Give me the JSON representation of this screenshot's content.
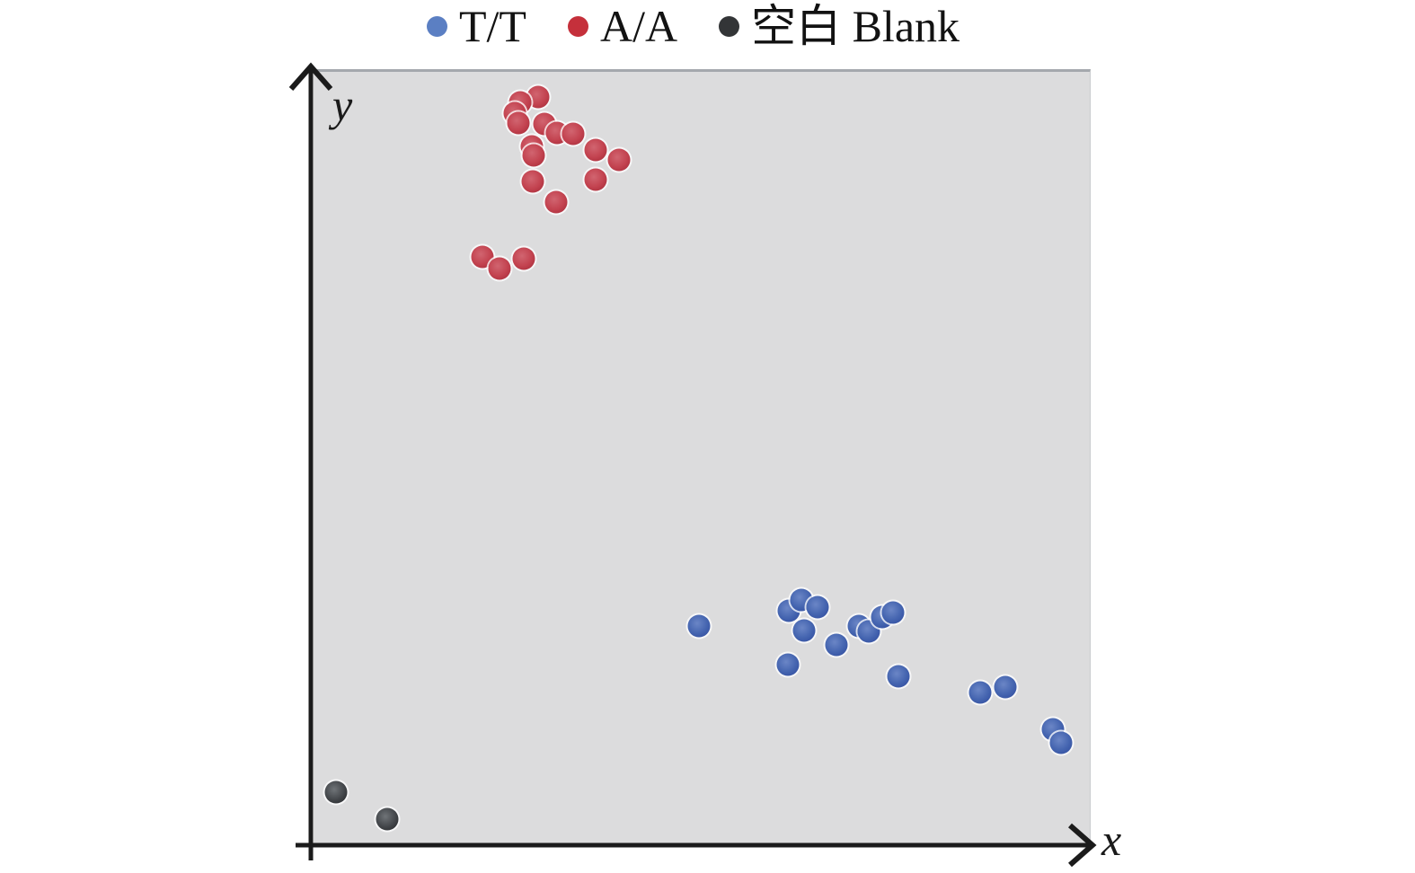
{
  "legend": {
    "items": [
      {
        "label": "T/T",
        "color": "#5b7fc3"
      },
      {
        "label": "A/A",
        "color": "#c5303b"
      },
      {
        "label": "空白 Blank",
        "color": "#333537"
      }
    ]
  },
  "axes": {
    "x_label": "x",
    "y_label": "y"
  },
  "colors": {
    "plot_background": "#dcdcdd",
    "plot_top_border": "#a4a8ad",
    "axis_line": "#1b1b1b",
    "series_blue": "#4565b0",
    "series_red": "#c34350",
    "series_black": "#45484c"
  },
  "chart_data": {
    "type": "scatter",
    "title": "",
    "xlabel": "x",
    "ylabel": "y",
    "xlim": [
      0,
      1
    ],
    "ylim": [
      0,
      1
    ],
    "axis_ticks": "none",
    "grid": false,
    "legend_position": "top-center",
    "description": "Genotyping scatter plot: A/A cluster high-y low-x, T/T cluster low-y high-x, blank samples near origin; coordinates normalized to plot area",
    "series": [
      {
        "name": "T/T",
        "color": "#4565b0",
        "points": [
          [
            0.497,
            0.283
          ],
          [
            0.612,
            0.302
          ],
          [
            0.629,
            0.316
          ],
          [
            0.649,
            0.307
          ],
          [
            0.632,
            0.277
          ],
          [
            0.674,
            0.258
          ],
          [
            0.702,
            0.283
          ],
          [
            0.715,
            0.276
          ],
          [
            0.733,
            0.294
          ],
          [
            0.746,
            0.3
          ],
          [
            0.611,
            0.233
          ],
          [
            0.753,
            0.218
          ],
          [
            0.859,
            0.196
          ],
          [
            0.891,
            0.204
          ],
          [
            0.952,
            0.149
          ],
          [
            0.963,
            0.131
          ]
        ]
      },
      {
        "name": "A/A",
        "color": "#c34350",
        "points": [
          [
            0.289,
            0.967
          ],
          [
            0.266,
            0.96
          ],
          [
            0.259,
            0.946
          ],
          [
            0.264,
            0.934
          ],
          [
            0.297,
            0.932
          ],
          [
            0.314,
            0.921
          ],
          [
            0.334,
            0.92
          ],
          [
            0.281,
            0.904
          ],
          [
            0.284,
            0.892
          ],
          [
            0.364,
            0.899
          ],
          [
            0.394,
            0.886
          ],
          [
            0.282,
            0.858
          ],
          [
            0.364,
            0.86
          ],
          [
            0.313,
            0.831
          ],
          [
            0.218,
            0.76
          ],
          [
            0.24,
            0.745
          ],
          [
            0.271,
            0.758
          ]
        ]
      },
      {
        "name": "空白 Blank",
        "color": "#45484c",
        "points": [
          [
            0.029,
            0.067
          ],
          [
            0.095,
            0.032
          ]
        ]
      }
    ]
  }
}
